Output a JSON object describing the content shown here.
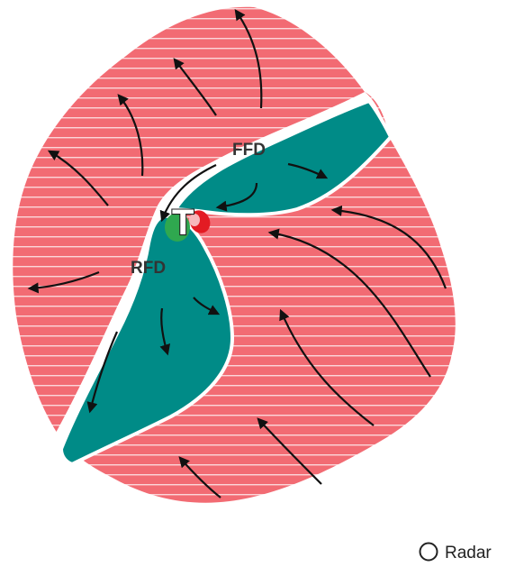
{
  "labels": {
    "forward_flank": "FFD",
    "rear_flank": "RFD",
    "tornado": "T"
  },
  "legend": {
    "label": "Radar"
  },
  "colors": {
    "outflow_fill": "#f26b73",
    "stripe": "#fbd6d9",
    "downdraft_fill": "#008b87",
    "white_gap": "#ffffff",
    "green_vortex": "#2fa84f",
    "red_vortex": "#e31b23",
    "arrow": "#111111"
  },
  "icons": {
    "legend_marker": "open-circle-icon",
    "arrows": "flow-arrow-icon"
  }
}
